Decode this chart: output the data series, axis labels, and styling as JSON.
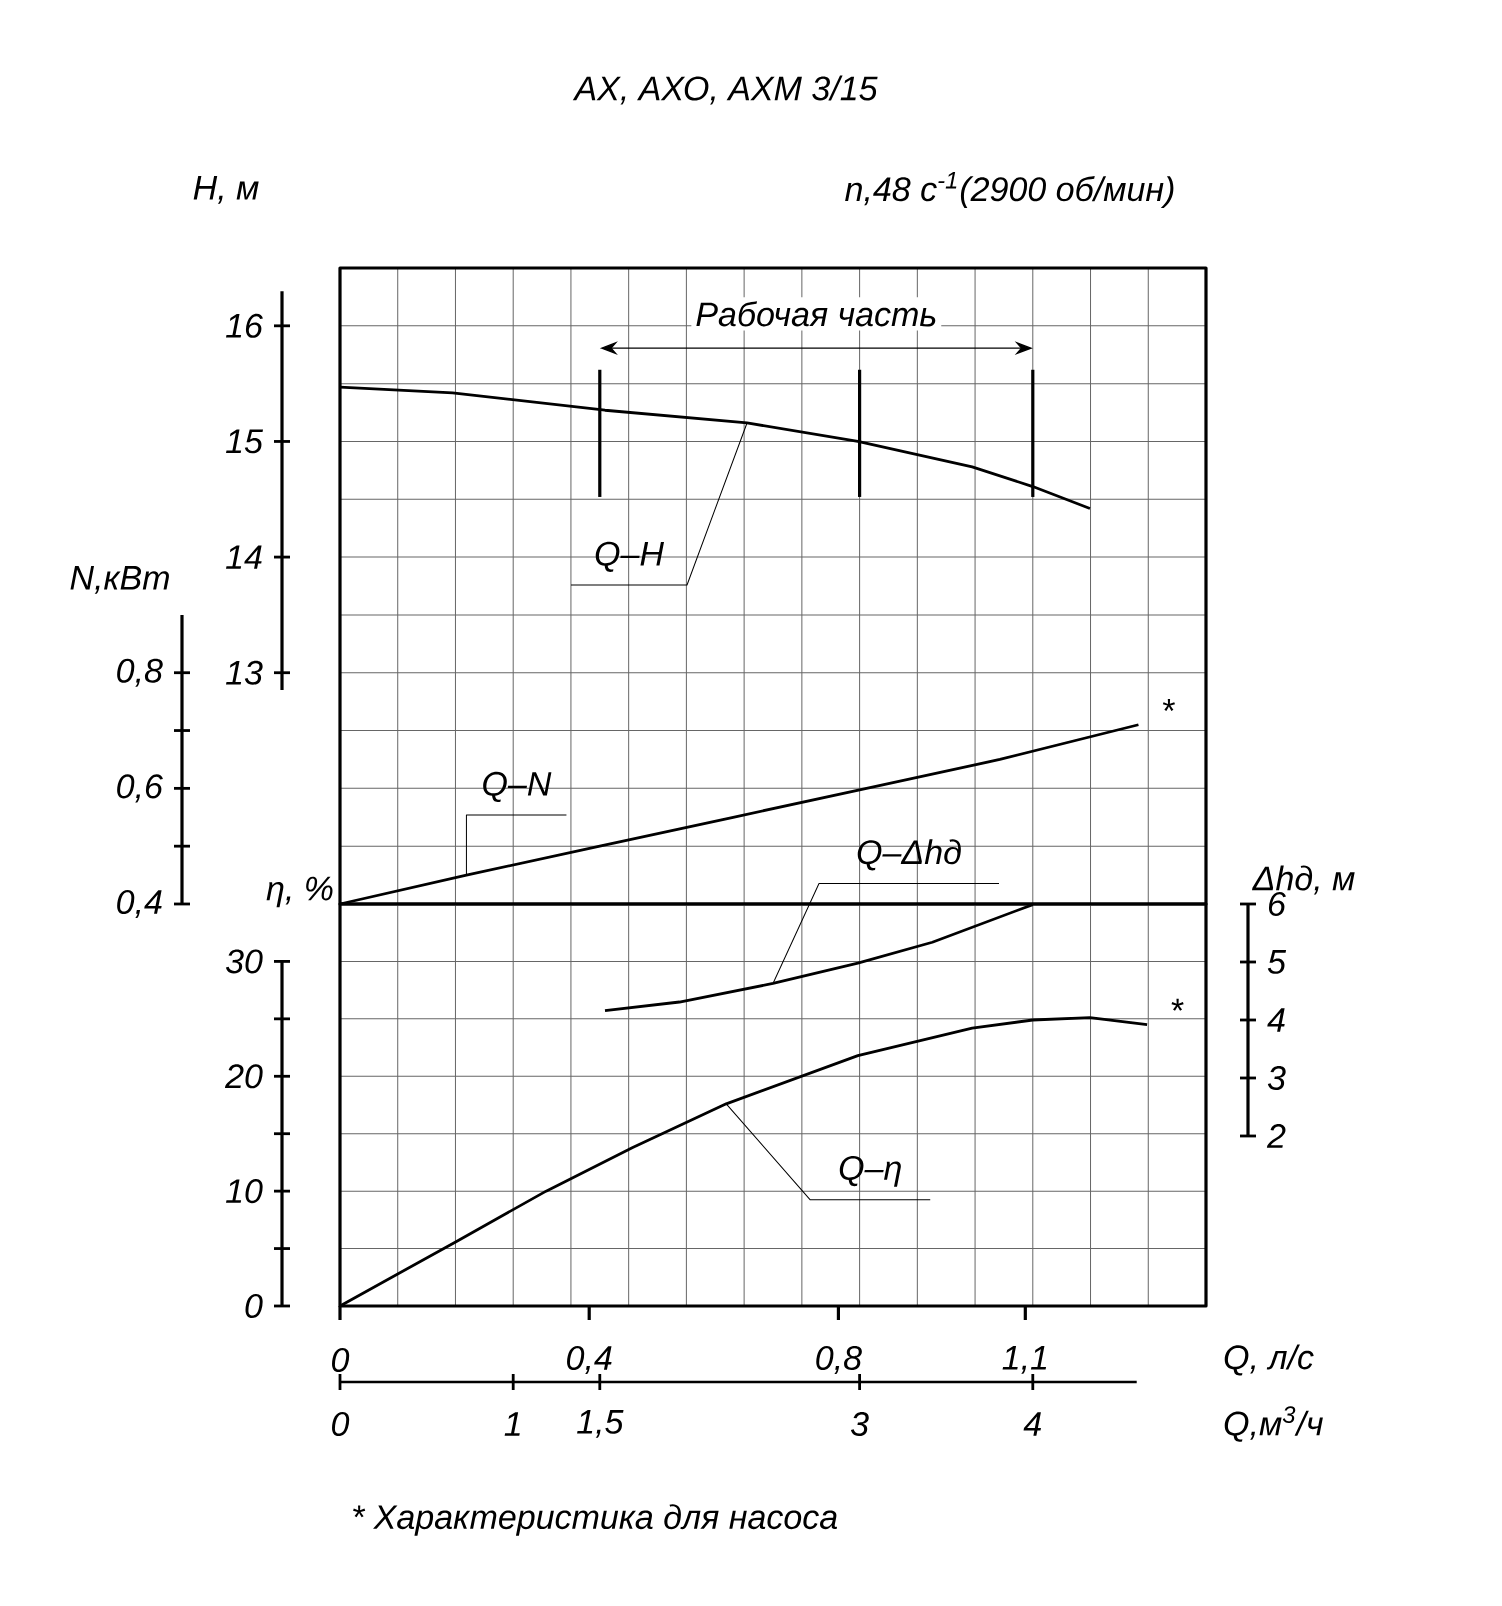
{
  "chart_data": [
    {
      "type": "line",
      "title": "АХ, АХО, АХМ 3/15",
      "subtitle": "n,48 с$^{-1}$(2900 об/мин)",
      "xlim": [
        0,
        5
      ],
      "tick_labels": "y",
      "ylabel": "H, м",
      "ylim": [
        11,
        16.5
      ],
      "yticks": [
        13,
        14,
        15,
        16
      ],
      "y2label": "N,кВт",
      "y2lim": [
        0.4,
        1.5
      ],
      "y2ticks": [
        {
          "value": 0.4,
          "label": "0,4"
        },
        {
          "value": 0.5,
          "label": null
        },
        {
          "value": 0.6,
          "label": "0,6"
        },
        {
          "value": 0.7,
          "label": null
        },
        {
          "value": 0.8,
          "label": "0,8"
        }
      ],
      "grid": true,
      "ref_lines": [
        {
          "axis": "x",
          "value": 1.5
        },
        {
          "axis": "x",
          "value": 3
        },
        {
          "axis": "x",
          "value": 4
        }
      ],
      "annotations": [
        "Рабочая часть"
      ],
      "series": [
        {
          "name": "Q–H",
          "color": "#000000",
          "x": [
            0,
            0.65,
            1.53,
            2.35,
            2.99,
            3.65,
            4.0,
            4.33
          ],
          "values": [
            15.47,
            15.42,
            15.27,
            15.16,
            15.0,
            14.78,
            14.61,
            14.42
          ]
        },
        {
          "name": "Q–N",
          "color": "#000000",
          "axis": "y2",
          "x": [
            0,
            0.73,
            1.5,
            2.27,
            3.04,
            3.81,
            4.61
          ],
          "values": [
            0.4,
            0.45,
            0.5,
            0.55,
            0.6,
            0.65,
            0.71
          ],
          "value_labels": [
            null,
            null,
            null,
            null,
            null,
            null,
            "*"
          ]
        }
      ]
    },
    {
      "type": "line",
      "xlabel": "Q,м$^{3}$/ч",
      "xlim": [
        0,
        5
      ],
      "xticks": [
        0,
        1,
        {
          "value": 1.5,
          "label": "1,5"
        },
        3,
        4
      ],
      "x2label": "Q, л/с",
      "x2lim": [
        0,
        1.39
      ],
      "x2ticks": [
        0,
        {
          "value": 0.4,
          "label": "0,4"
        },
        {
          "value": 0.8,
          "label": "0,8"
        },
        {
          "value": 1.1,
          "label": "1,1"
        }
      ],
      "ylabel": "η, %",
      "ylim": [
        0,
        35
      ],
      "yticks": [
        0,
        {
          "value": 5,
          "label": null
        },
        10,
        {
          "value": 15,
          "label": null
        },
        20,
        {
          "value": 25,
          "label": null
        },
        30
      ],
      "y2label": "Δhд, м",
      "y2lim": [
        2,
        6
      ],
      "y2ticks": [
        2,
        3,
        4,
        5,
        6
      ],
      "grid": true,
      "annotations": [
        "* Характеристика для насоса"
      ],
      "series": [
        {
          "name": "Q–Δhд",
          "color": "#000000",
          "axis": "y2",
          "x": [
            1.53,
            1.96,
            2.5,
            2.99,
            3.42,
            4.0
          ],
          "values": [
            4.16,
            4.31,
            4.63,
            4.98,
            5.34,
            5.99
          ]
        },
        {
          "name": "Q–η",
          "color": "#000000",
          "x": [
            0,
            0.67,
            1.19,
            1.69,
            2.23,
            2.99,
            3.65,
            4.0,
            4.33,
            4.66
          ],
          "values": [
            0,
            5.6,
            10,
            13.8,
            17.6,
            21.8,
            24.2,
            24.9,
            25.1,
            24.5
          ],
          "value_labels": [
            null,
            null,
            null,
            null,
            null,
            null,
            null,
            null,
            null,
            "*"
          ]
        }
      ]
    }
  ]
}
